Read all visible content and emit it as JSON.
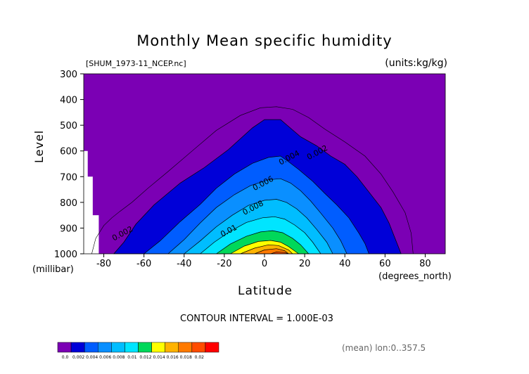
{
  "chart_data": {
    "type": "contour",
    "title": "Monthly Mean specific humidity",
    "dataset_label": "[SHUM_1973-11_NCEP.nc]",
    "units_label": "(units:kg/kg)",
    "ylabel": "Level",
    "ylabel_units": "(millibar)",
    "xlabel": "Latitude",
    "xlabel_units": "(degrees_north)",
    "xlim": [
      -90,
      90
    ],
    "ylim": [
      1000,
      300
    ],
    "x_ticks": [
      -80,
      -60,
      -40,
      -20,
      0,
      20,
      40,
      60,
      80
    ],
    "y_ticks": [
      300,
      400,
      500,
      600,
      700,
      800,
      900,
      1000
    ],
    "contour_interval_text": "CONTOUR INTERVAL = 1.000E-03",
    "footer_text": "(mean) lon:0..357.5",
    "contour_labels": [
      {
        "text": "0.002",
        "lat": 22,
        "level": 635
      },
      {
        "text": "0.004",
        "lat": 8,
        "level": 655
      },
      {
        "text": "0.006",
        "lat": -5,
        "level": 755
      },
      {
        "text": "0.008",
        "lat": -10,
        "level": 850
      },
      {
        "text": "0.01",
        "lat": -21,
        "level": 935
      },
      {
        "text": "0.002",
        "lat": -75,
        "level": 950
      }
    ],
    "bands": [
      {
        "min": 0.001,
        "color": "#0000d8",
        "left": [
          [
            -75,
            1000
          ],
          [
            -70,
            955
          ],
          [
            -64,
            885
          ],
          [
            -55,
            810
          ],
          [
            -42,
            725
          ],
          [
            -30,
            665
          ],
          [
            -18,
            595
          ],
          [
            -6,
            510
          ],
          [
            0,
            478
          ],
          [
            8,
            478
          ],
          [
            12,
            505
          ],
          [
            18,
            545
          ],
          [
            26,
            580
          ],
          [
            33,
            620
          ],
          [
            40,
            652
          ],
          [
            46,
            700
          ],
          [
            52,
            760
          ],
          [
            58,
            820
          ],
          [
            62,
            880
          ],
          [
            65,
            940
          ],
          [
            68,
            1000
          ]
        ]
      },
      {
        "min": 0.002,
        "color": "#005dff",
        "left": [
          [
            -60,
            1000
          ],
          [
            -52,
            950
          ],
          [
            -42,
            875
          ],
          [
            -32,
            808
          ],
          [
            -24,
            745
          ],
          [
            -15,
            690
          ],
          [
            -6,
            648
          ],
          [
            2,
            625
          ],
          [
            8,
            620
          ],
          [
            12,
            642
          ],
          [
            17,
            672
          ],
          [
            24,
            718
          ],
          [
            30,
            765
          ],
          [
            36,
            810
          ],
          [
            42,
            860
          ],
          [
            47,
            920
          ],
          [
            50,
            960
          ],
          [
            52,
            1000
          ]
        ]
      },
      {
        "min": 0.003,
        "color": "#0a8fff",
        "left": [
          [
            -48,
            1000
          ],
          [
            -40,
            945
          ],
          [
            -32,
            880
          ],
          [
            -24,
            820
          ],
          [
            -15,
            770
          ],
          [
            -7,
            735
          ],
          [
            2,
            712
          ],
          [
            8,
            708
          ],
          [
            13,
            725
          ],
          [
            18,
            755
          ],
          [
            23,
            795
          ],
          [
            28,
            842
          ],
          [
            34,
            900
          ],
          [
            38,
            950
          ],
          [
            41,
            1000
          ]
        ]
      },
      {
        "min": 0.004,
        "color": "#00bdff",
        "left": [
          [
            -40,
            1000
          ],
          [
            -32,
            950
          ],
          [
            -24,
            895
          ],
          [
            -16,
            850
          ],
          [
            -8,
            812
          ],
          [
            0,
            792
          ],
          [
            6,
            788
          ],
          [
            11,
            800
          ],
          [
            16,
            825
          ],
          [
            21,
            860
          ],
          [
            26,
            905
          ],
          [
            31,
            955
          ],
          [
            34,
            1000
          ]
        ]
      },
      {
        "min": 0.005,
        "color": "#00e5ff",
        "left": [
          [
            -32,
            1000
          ],
          [
            -25,
            955
          ],
          [
            -17,
            912
          ],
          [
            -9,
            878
          ],
          [
            -1,
            860
          ],
          [
            5,
            856
          ],
          [
            10,
            865
          ],
          [
            15,
            888
          ],
          [
            20,
            918
          ],
          [
            24,
            955
          ],
          [
            28,
            1000
          ]
        ]
      },
      {
        "min": 0.007,
        "color": "#00d85a",
        "left": [
          [
            -24,
            1000
          ],
          [
            -17,
            962
          ],
          [
            -9,
            932
          ],
          [
            -2,
            915
          ],
          [
            4,
            910
          ],
          [
            9,
            918
          ],
          [
            14,
            940
          ],
          [
            18,
            965
          ],
          [
            22,
            1000
          ]
        ]
      },
      {
        "min": 0.01,
        "color": "#ffff00",
        "left": [
          [
            -17,
            1000
          ],
          [
            -10,
            970
          ],
          [
            -3,
            952
          ],
          [
            3,
            948
          ],
          [
            8,
            955
          ],
          [
            12,
            972
          ],
          [
            17,
            1000
          ]
        ]
      },
      {
        "min": 0.012,
        "color": "#ffb300",
        "left": [
          [
            -12,
            1000
          ],
          [
            -5,
            978
          ],
          [
            2,
            965
          ],
          [
            7,
            968
          ],
          [
            12,
            985
          ],
          [
            14,
            1000
          ]
        ]
      },
      {
        "min": 0.014,
        "color": "#ff7a00",
        "left": [
          [
            -5,
            1000
          ],
          [
            0,
            985
          ],
          [
            6,
            980
          ],
          [
            10,
            988
          ],
          [
            12,
            1000
          ]
        ]
      },
      {
        "min": 0.016,
        "color": "#ff4c00",
        "left": [
          [
            3,
            1000
          ],
          [
            6,
            993
          ],
          [
            10,
            995
          ],
          [
            12,
            1000
          ]
        ]
      }
    ],
    "extra_contours": [
      {
        "value": 0.0005,
        "points": [
          [
            -86,
            1000
          ],
          [
            -84,
            940
          ],
          [
            -80,
            890
          ],
          [
            -76,
            860
          ],
          [
            -72,
            835
          ],
          [
            -66,
            800
          ],
          [
            -58,
            745
          ],
          [
            -48,
            680
          ],
          [
            -36,
            600
          ],
          [
            -24,
            520
          ],
          [
            -12,
            462
          ],
          [
            -2,
            432
          ],
          [
            6,
            428
          ],
          [
            14,
            438
          ],
          [
            22,
            470
          ],
          [
            30,
            515
          ],
          [
            40,
            565
          ],
          [
            50,
            620
          ],
          [
            58,
            690
          ],
          [
            64,
            760
          ],
          [
            70,
            840
          ],
          [
            73,
            920
          ],
          [
            74,
            1000
          ]
        ]
      }
    ],
    "colorbar": {
      "labels": [
        "0.0",
        "0.002",
        "0.004",
        "0.006",
        "0.008",
        "0.01",
        "0.012",
        "0.014",
        "0.016",
        "0.018",
        "0.02"
      ],
      "colors": [
        "#7b00b4",
        "#0000d8",
        "#005dff",
        "#0a8fff",
        "#00bdff",
        "#00e5ff",
        "#00d85a",
        "#ffff00",
        "#ffb300",
        "#ff7a00",
        "#ff4c00",
        "#ff0000"
      ]
    },
    "background_color": "#7b00b4"
  }
}
